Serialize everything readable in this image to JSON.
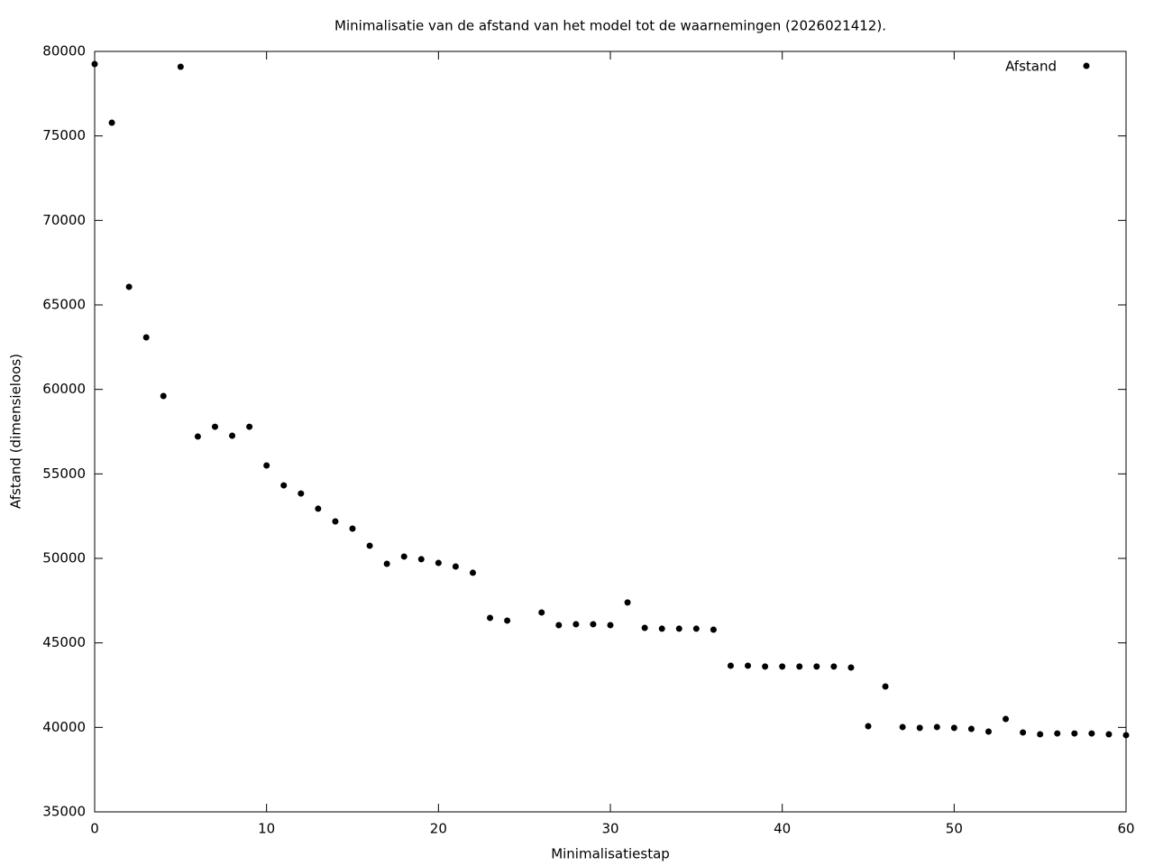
{
  "chart_data": {
    "type": "scatter",
    "title": "Minimalisatie van de afstand van het model tot de waarnemingen (2026021412).",
    "x_label": "Minimalisatiestap",
    "y_label": "Afstand (dimensieloos)",
    "x": [
      0,
      1,
      2,
      3,
      4,
      5,
      6,
      7,
      8,
      9,
      10,
      11,
      12,
      13,
      14,
      15,
      16,
      17,
      18,
      19,
      20,
      21,
      22,
      23,
      24,
      26,
      27,
      28,
      29,
      30,
      31,
      32,
      33,
      34,
      35,
      36,
      37,
      38,
      39,
      40,
      41,
      42,
      43,
      44,
      45,
      46,
      47,
      48,
      49,
      50,
      51,
      52,
      53,
      54,
      55,
      56,
      57,
      58,
      59,
      60
    ],
    "series": [
      {
        "name": "Afstand",
        "color": "#000000",
        "values": [
          79250,
          75780,
          66070,
          63080,
          59610,
          79090,
          57210,
          57790,
          57260,
          57790,
          55500,
          54320,
          53840,
          52940,
          52190,
          51760,
          50750,
          49680,
          50110,
          49950,
          49730,
          49520,
          49150,
          46480,
          46320,
          46800,
          46050,
          46100,
          46100,
          46050,
          47390,
          45890,
          45840,
          45840,
          45840,
          45780,
          43650,
          43650,
          43600,
          43600,
          43600,
          43600,
          43600,
          43540,
          40070,
          42420,
          40020,
          39970,
          40020,
          39970,
          39910,
          39750,
          40500,
          39700,
          39590,
          39640,
          39640,
          39640,
          39590,
          39540
        ]
      }
    ],
    "xlim": [
      0,
      60
    ],
    "xticks": [
      0,
      10,
      20,
      30,
      40,
      50,
      60
    ],
    "ylim": [
      35000,
      80000
    ],
    "yticks": [
      35000,
      40000,
      45000,
      50000,
      55000,
      60000,
      65000,
      70000,
      75000,
      80000
    ],
    "grid": false,
    "legend": "top right"
  }
}
